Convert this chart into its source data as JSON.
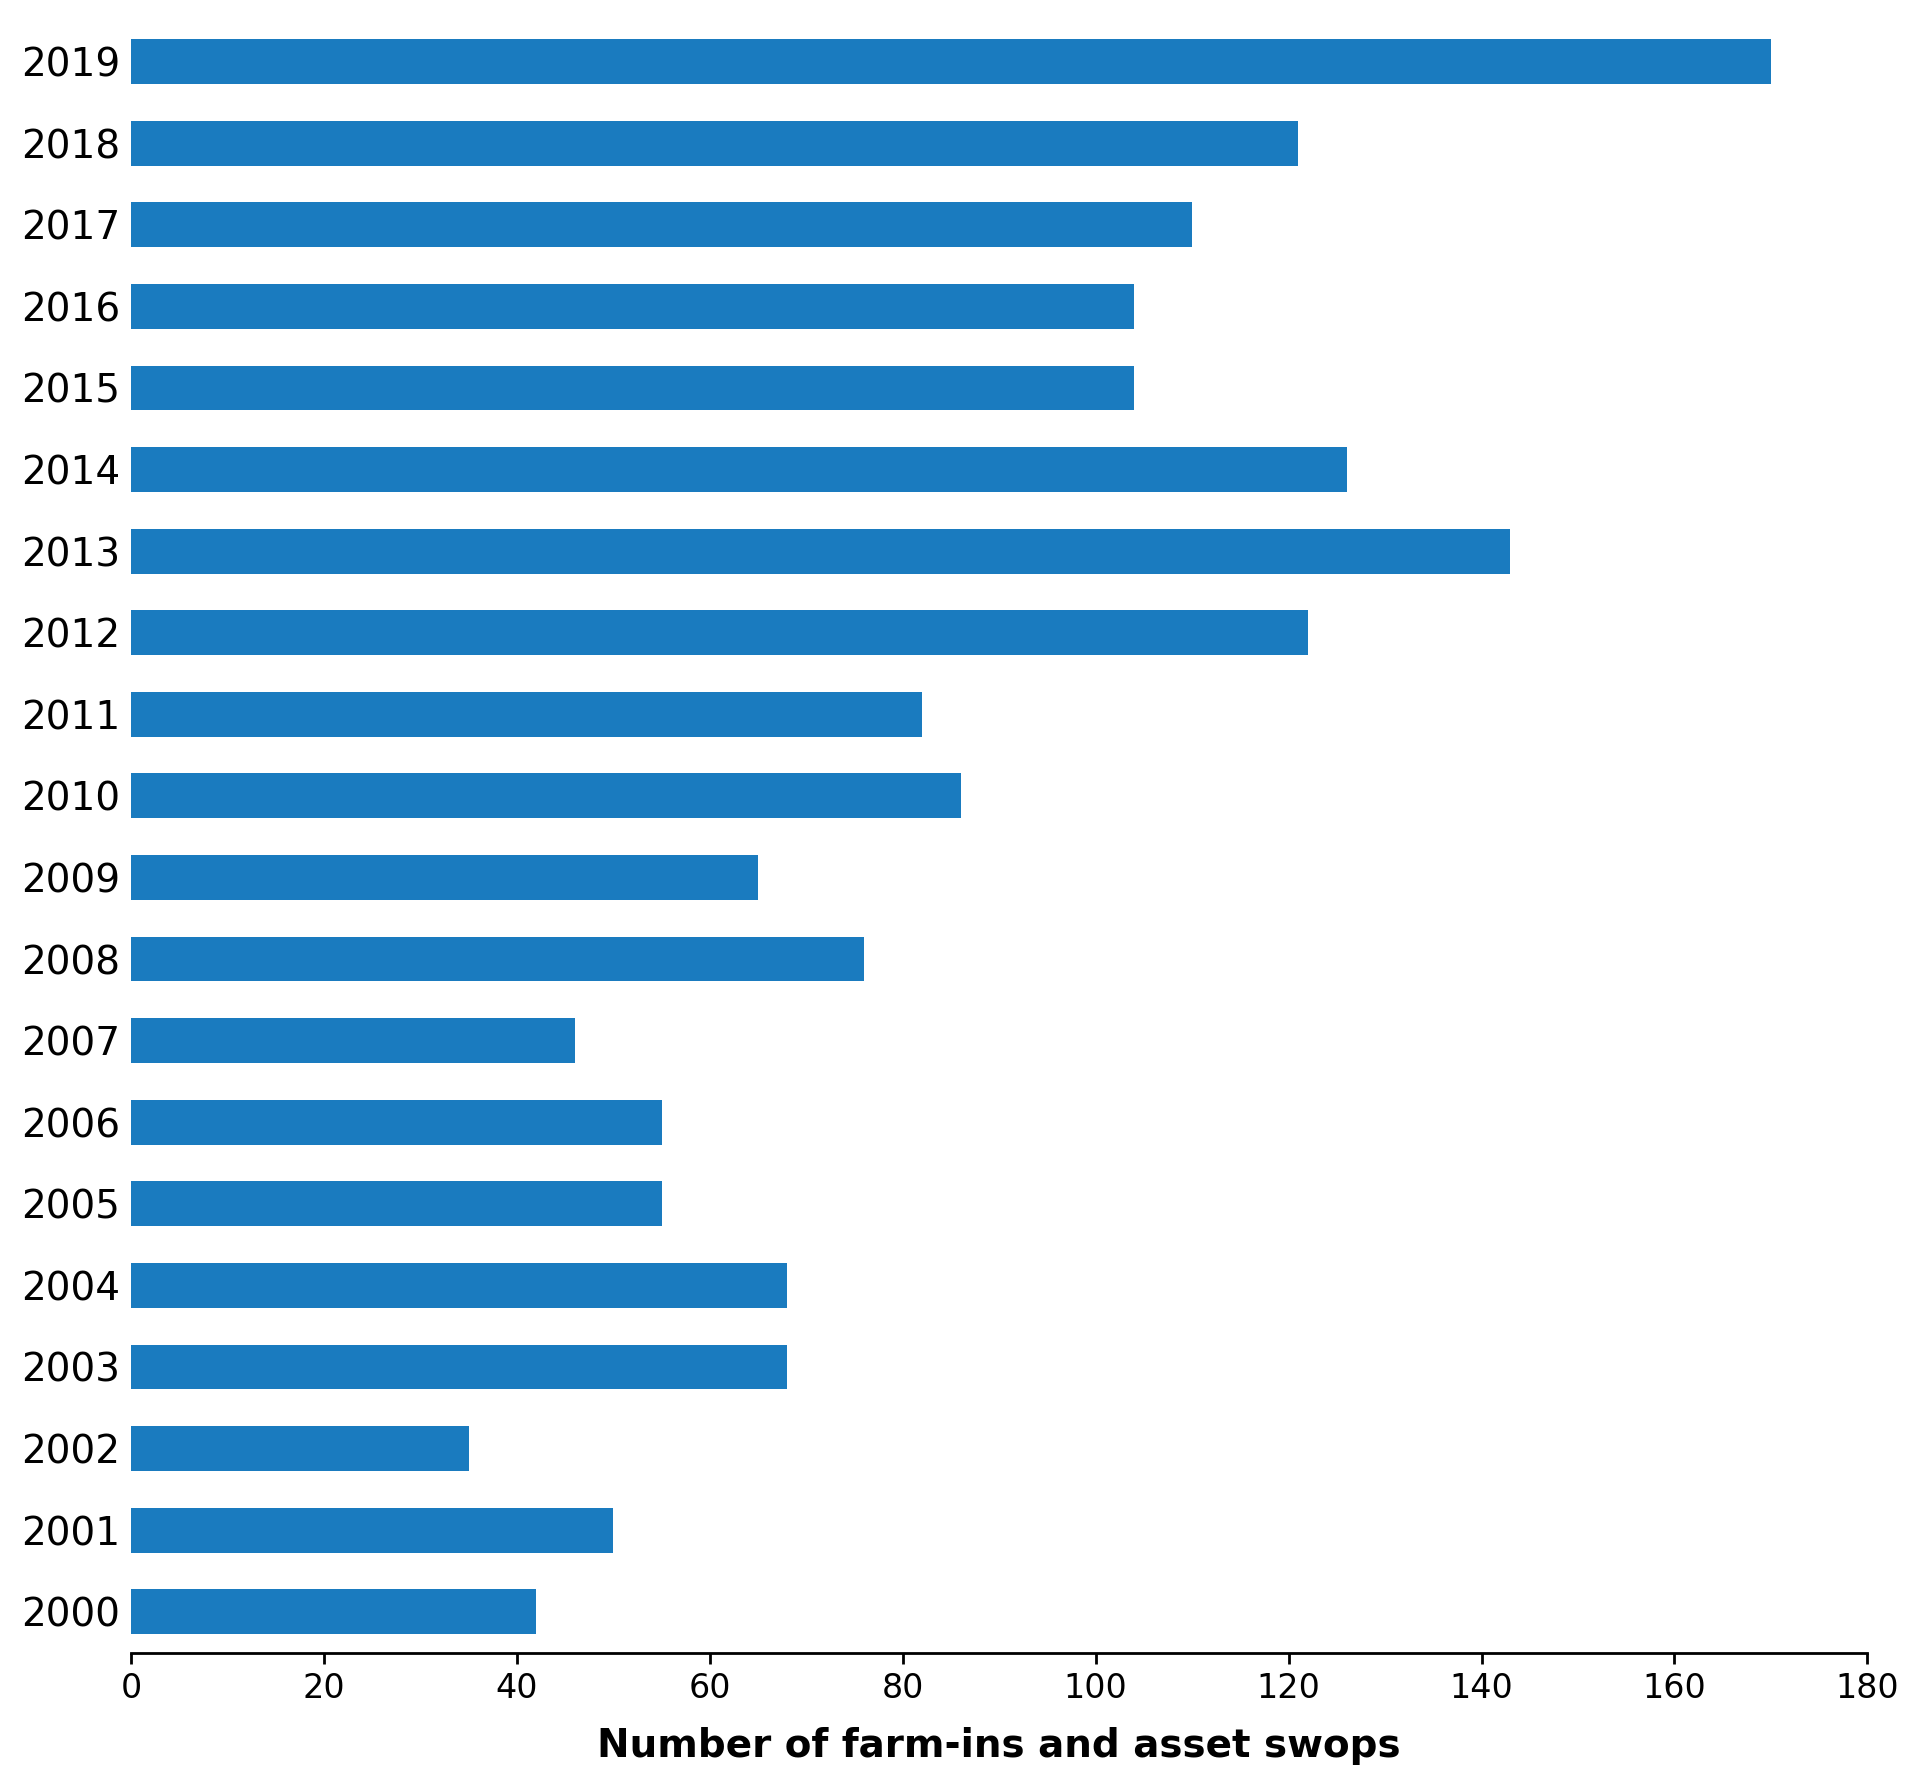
{
  "years": [
    "2019",
    "2018",
    "2017",
    "2016",
    "2015",
    "2014",
    "2013",
    "2012",
    "2011",
    "2010",
    "2009",
    "2008",
    "2007",
    "2006",
    "2005",
    "2004",
    "2003",
    "2002",
    "2001",
    "2000"
  ],
  "values": [
    170,
    121,
    110,
    104,
    104,
    126,
    143,
    122,
    82,
    86,
    65,
    76,
    46,
    55,
    55,
    68,
    68,
    35,
    50,
    42
  ],
  "bar_color": "#1a7bbf",
  "xlabel": "Number of farm-ins and asset swops",
  "xlim": [
    0,
    180
  ],
  "xticks": [
    0,
    20,
    40,
    60,
    80,
    100,
    120,
    140,
    160,
    180
  ],
  "background_color": "#ffffff",
  "xlabel_fontsize": 28,
  "ytick_fontsize": 28,
  "xtick_fontsize": 24,
  "bar_height": 0.55
}
